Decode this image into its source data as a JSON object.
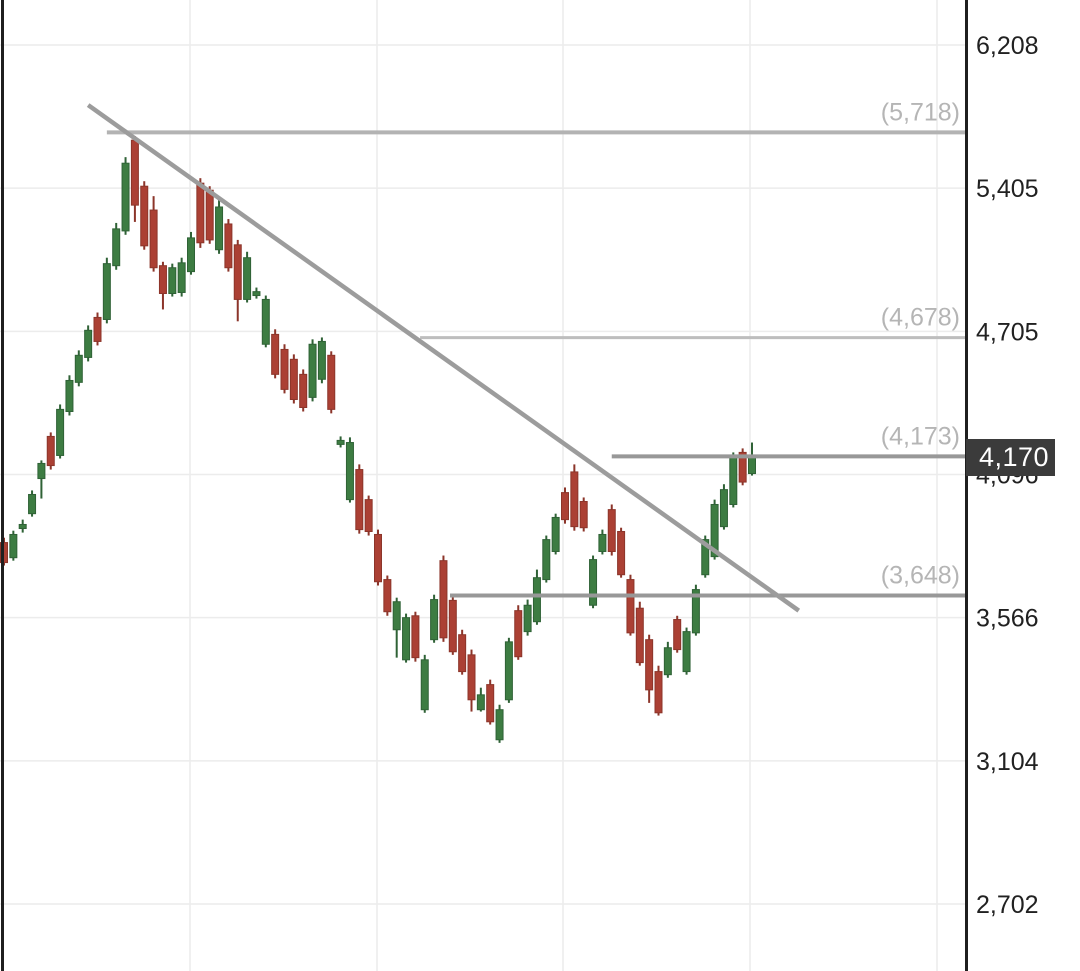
{
  "chart_data": {
    "type": "candlestick",
    "title": "",
    "x_axis": {
      "labels_visible": false
    },
    "y_axis": {
      "side": "right",
      "scale": "logarithmic",
      "tick_labels": [
        "6,208",
        "5,405",
        "4,705",
        "4,096",
        "3,566",
        "3,104",
        "2,702"
      ],
      "tick_values": [
        6208,
        5405,
        4705,
        4096,
        3566,
        3104,
        2702
      ]
    },
    "current_price": {
      "label": "4,170",
      "value": 4170
    },
    "levels": [
      {
        "label": "(5,718)",
        "value": 5718,
        "start_index": 11,
        "color": "#b3b3b3",
        "width": 4
      },
      {
        "label": "(4,678)",
        "value": 4678,
        "start_index": 44.5,
        "color": "#bdbdbd",
        "width": 3
      },
      {
        "label": "(4,173)",
        "value": 4173,
        "start_index": 65,
        "color": "#989898",
        "width": 4
      },
      {
        "label": "(3,648)",
        "value": 3648,
        "start_index": 47.7,
        "color": "#989898",
        "width": 4
      }
    ],
    "trendline": {
      "direction": "down",
      "from": {
        "index": 9,
        "value": 5871
      },
      "to": {
        "index": 85,
        "value": 3592
      }
    },
    "candle_format": "o,h,l,c",
    "candles": [
      [
        3844,
        3862,
        3759,
        3770
      ],
      [
        3788,
        3888,
        3777,
        3874
      ],
      [
        3896,
        3929,
        3881,
        3911
      ],
      [
        3951,
        4037,
        3940,
        4022
      ],
      [
        4081,
        4156,
        4007,
        4143
      ],
      [
        4258,
        4275,
        4117,
        4134
      ],
      [
        4177,
        4394,
        4164,
        4373
      ],
      [
        4364,
        4518,
        4347,
        4496
      ],
      [
        4488,
        4624,
        4471,
        4603
      ],
      [
        4594,
        4734,
        4577,
        4710
      ],
      [
        4773,
        4797,
        4645,
        4662
      ],
      [
        4763,
        5065,
        4744,
        5036
      ],
      [
        5026,
        5235,
        5006,
        5206
      ],
      [
        5196,
        5579,
        5177,
        5545
      ],
      [
        5674,
        5697,
        5240,
        5322
      ],
      [
        5416,
        5444,
        5104,
        5123
      ],
      [
        5298,
        5366,
        4997,
        5016
      ],
      [
        5026,
        5045,
        4812,
        4890
      ],
      [
        4890,
        5036,
        4875,
        5016
      ],
      [
        4895,
        5065,
        4875,
        5040
      ],
      [
        4997,
        5191,
        4982,
        5162
      ],
      [
        5433,
        5461,
        5113,
        5138
      ],
      [
        5395,
        5416,
        5133,
        5152
      ],
      [
        5104,
        5347,
        5084,
        5313
      ],
      [
        5230,
        5254,
        4997,
        5016
      ],
      [
        5128,
        5152,
        4754,
        4861
      ],
      [
        4861,
        5094,
        4846,
        5065
      ],
      [
        4880,
        4919,
        4865,
        4899
      ],
      [
        4650,
        4880,
        4637,
        4861
      ],
      [
        4692,
        4715,
        4505,
        4522
      ],
      [
        4628,
        4650,
        4441,
        4458
      ],
      [
        4586,
        4607,
        4398,
        4415
      ],
      [
        4522,
        4543,
        4364,
        4381
      ],
      [
        4424,
        4671,
        4407,
        4650
      ],
      [
        4501,
        4679,
        4484,
        4662
      ],
      [
        4603,
        4620,
        4356,
        4373
      ],
      [
        4224,
        4258,
        4211,
        4241
      ],
      [
        4003,
        4254,
        3992,
        4232
      ],
      [
        4117,
        4139,
        3877,
        3892
      ],
      [
        4003,
        4018,
        3870,
        3885
      ],
      [
        3874,
        3892,
        3685,
        3699
      ],
      [
        3707,
        3722,
        3573,
        3588
      ],
      [
        3527,
        3640,
        3437,
        3625
      ],
      [
        3430,
        3581,
        3421,
        3566
      ],
      [
        3573,
        3588,
        3424,
        3437
      ],
      [
        3269,
        3446,
        3259,
        3430
      ],
      [
        3495,
        3651,
        3485,
        3633
      ],
      [
        3777,
        3796,
        3488,
        3501
      ],
      [
        3630,
        3648,
        3446,
        3456
      ],
      [
        3511,
        3527,
        3382,
        3392
      ],
      [
        3446,
        3463,
        3263,
        3301
      ],
      [
        3269,
        3340,
        3263,
        3317
      ],
      [
        3350,
        3366,
        3221,
        3230
      ],
      [
        3172,
        3285,
        3162,
        3269
      ],
      [
        3301,
        3501,
        3291,
        3488
      ],
      [
        3592,
        3612,
        3430,
        3440
      ],
      [
        3521,
        3633,
        3508,
        3612
      ],
      [
        3553,
        3744,
        3543,
        3714
      ],
      [
        3707,
        3870,
        3696,
        3855
      ],
      [
        3811,
        3951,
        3800,
        3937
      ],
      [
        4029,
        4048,
        3914,
        3929
      ],
      [
        4107,
        4139,
        3888,
        3903
      ],
      [
        3996,
        4011,
        3885,
        3899
      ],
      [
        3612,
        3796,
        3601,
        3781
      ],
      [
        3811,
        3892,
        3800,
        3874
      ],
      [
        3966,
        3985,
        3796,
        3811
      ],
      [
        3885,
        3899,
        3714,
        3725
      ],
      [
        3707,
        3725,
        3508,
        3517
      ],
      [
        3601,
        3625,
        3411,
        3421
      ],
      [
        3495,
        3511,
        3291,
        3333
      ],
      [
        3392,
        3411,
        3250,
        3259
      ],
      [
        3382,
        3488,
        3372,
        3469
      ],
      [
        3560,
        3573,
        3453,
        3463
      ],
      [
        3392,
        3534,
        3382,
        3521
      ],
      [
        3517,
        3688,
        3508,
        3670
      ],
      [
        3725,
        3870,
        3714,
        3855
      ],
      [
        3792,
        4003,
        3781,
        3985
      ],
      [
        3903,
        4060,
        3892,
        4040
      ],
      [
        3985,
        4190,
        3974,
        4168
      ],
      [
        4190,
        4207,
        4056,
        4068
      ],
      [
        4100,
        4232,
        4092,
        4173
      ]
    ]
  },
  "colors": {
    "up_body": "#3d7c42",
    "up_border": "#2f6236",
    "down_body": "#ab4034",
    "down_border": "#8c352a",
    "grid": "#ececec",
    "trend_line": "#9c9c9c",
    "axis_line": "#1f1f1f",
    "pane_border": "#1f1f1f",
    "tick_text": "#212121",
    "level_text": "#b5b5b5",
    "badge_bg": "#3b3b3b",
    "badge_text": "#ffffff"
  }
}
